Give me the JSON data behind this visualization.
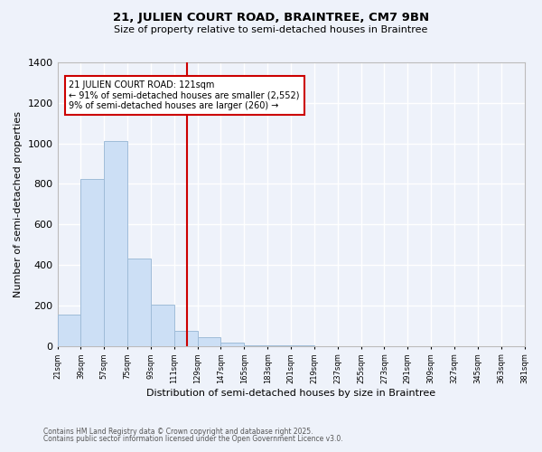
{
  "title_line1": "21, JULIEN COURT ROAD, BRAINTREE, CM7 9BN",
  "title_line2": "Size of property relative to semi-detached houses in Braintree",
  "xlabel": "Distribution of semi-detached houses by size in Braintree",
  "ylabel": "Number of semi-detached properties",
  "bins": [
    21,
    39,
    57,
    75,
    93,
    111,
    129,
    147,
    165,
    183,
    201,
    219,
    237,
    255,
    273,
    291,
    309,
    327,
    345,
    363,
    381
  ],
  "bar_heights": [
    155,
    825,
    1010,
    430,
    205,
    75,
    45,
    15,
    5,
    2,
    2,
    1,
    1,
    0,
    0,
    0,
    0,
    0,
    0,
    0
  ],
  "bar_color": "#ccdff5",
  "bar_edge_color": "#9fbcd8",
  "property_size": 121,
  "vline_color": "#cc0000",
  "annotation_text": "21 JULIEN COURT ROAD: 121sqm\n← 91% of semi-detached houses are smaller (2,552)\n9% of semi-detached houses are larger (260) →",
  "annotation_box_color": "#ffffff",
  "annotation_box_edge": "#cc0000",
  "footnote1": "Contains HM Land Registry data © Crown copyright and database right 2025.",
  "footnote2": "Contains public sector information licensed under the Open Government Licence v3.0.",
  "ylim": [
    0,
    1400
  ],
  "yticks": [
    0,
    200,
    400,
    600,
    800,
    1000,
    1200,
    1400
  ],
  "bg_color": "#eef2fa",
  "grid_color": "#ffffff",
  "tick_labels": [
    "21sqm",
    "39sqm",
    "57sqm",
    "75sqm",
    "93sqm",
    "111sqm",
    "129sqm",
    "147sqm",
    "165sqm",
    "183sqm",
    "201sqm",
    "219sqm",
    "237sqm",
    "255sqm",
    "273sqm",
    "291sqm",
    "309sqm",
    "327sqm",
    "345sqm",
    "363sqm",
    "381sqm"
  ]
}
